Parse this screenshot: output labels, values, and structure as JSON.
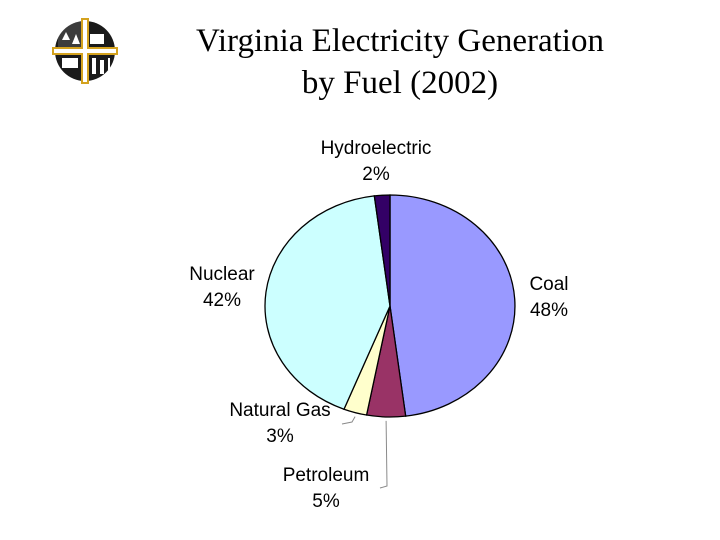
{
  "title_lines": [
    "Virginia Electricity Generation",
    "by Fuel (2002)"
  ],
  "logo_icon": "cross-emblem-icon",
  "colors": {
    "coal": "#9999FF",
    "petroleum": "#993366",
    "natural_gas": "#FFFFCC",
    "nuclear": "#CCFFFF",
    "hydroelectric": "#330066",
    "logo_gold": "#D4A21E",
    "logo_dark": "#1A1A1A"
  },
  "chart_data": {
    "type": "pie",
    "title": "Virginia Electricity Generation by Fuel (2002)",
    "slices": [
      {
        "name": "Coal",
        "value": 48,
        "label": "48%"
      },
      {
        "name": "Petroleum",
        "value": 5,
        "label": "5%"
      },
      {
        "name": "Natural Gas",
        "value": 3,
        "label": "3%"
      },
      {
        "name": "Nuclear",
        "value": 42,
        "label": "42%"
      },
      {
        "name": "Hydroelectric",
        "value": 2,
        "label": "2%"
      }
    ],
    "start_angle": "12 o'clock",
    "direction": "clockwise",
    "legend": "none"
  }
}
